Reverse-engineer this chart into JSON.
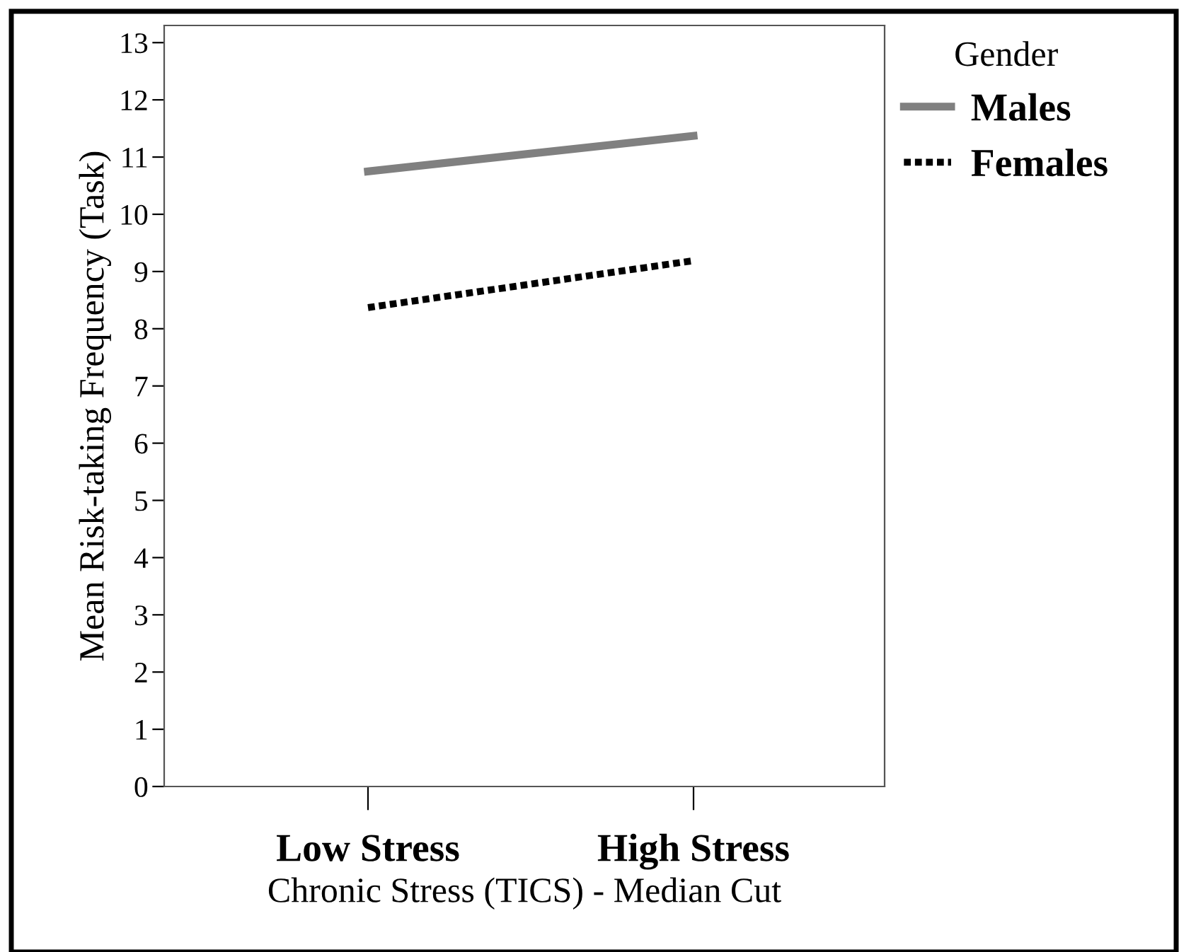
{
  "chart_data": {
    "type": "line",
    "xlabel": "Chronic Stress (TICS) - Median Cut",
    "ylabel": "Mean Risk-taking Frequency (Task)",
    "legend_title": "Gender",
    "categories": [
      "Low Stress",
      "High Stress"
    ],
    "series": [
      {
        "name": "Males",
        "color": "#808080",
        "values": [
          10.75,
          11.37
        ],
        "line_style": "solid"
      },
      {
        "name": "Females",
        "color": "#000000",
        "values": [
          8.37,
          9.19
        ],
        "line_style": "dotted"
      }
    ],
    "ylim": [
      0,
      13.3
    ],
    "yticks": [
      0,
      1,
      2,
      3,
      4,
      5,
      6,
      7,
      8,
      9,
      10,
      11,
      12,
      13
    ],
    "grid": false,
    "legend": "top right",
    "marker": "none"
  }
}
